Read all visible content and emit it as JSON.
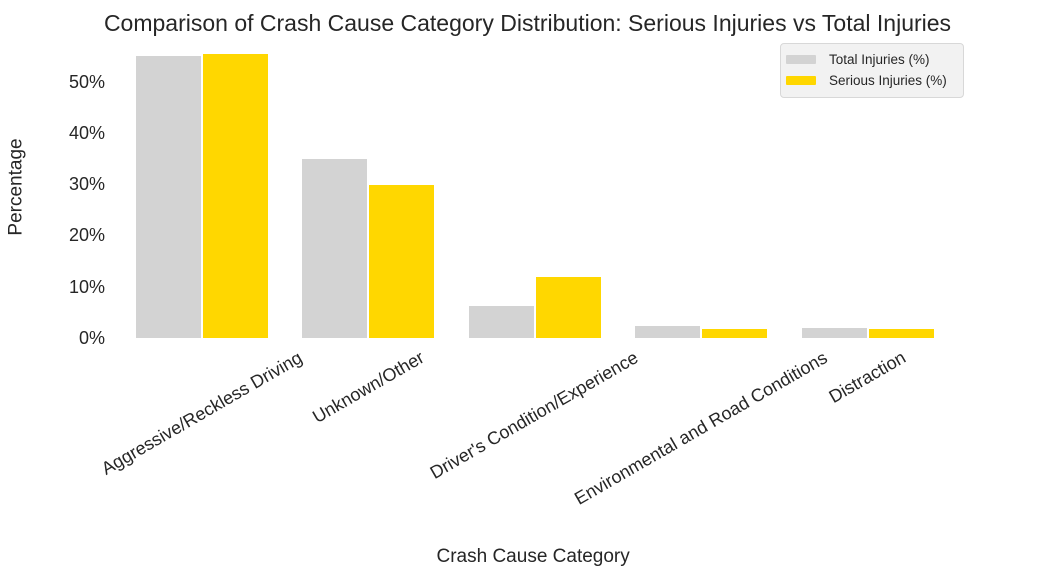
{
  "chart_data": {
    "type": "bar",
    "title": "Comparison of Crash Cause Category Distribution: Serious Injuries vs Total Injuries",
    "xlabel": "Crash Cause Category",
    "ylabel": "Percentage",
    "categories": [
      "Aggressive/Reckless Driving",
      "Unknown/Other",
      "Driver's Condition/Experience",
      "Environmental and Road Conditions",
      "Distraction"
    ],
    "series": [
      {
        "name": "Total Injuries (%)",
        "color": "#d3d3d3",
        "values": [
          54.9,
          34.8,
          6.2,
          2.4,
          1.9
        ]
      },
      {
        "name": "Serious Injuries (%)",
        "color": "#ffd700",
        "values": [
          55.4,
          29.8,
          11.9,
          1.7,
          1.7
        ]
      }
    ],
    "ytick_values": [
      0,
      10,
      20,
      30,
      40,
      50
    ],
    "ytick_labels": [
      "0%",
      "10%",
      "20%",
      "30%",
      "40%",
      "50%"
    ],
    "ylim": [
      0,
      57.1
    ],
    "grid": false,
    "legend_position": "upper right",
    "xtick_rotation_deg": 30
  },
  "legend": {
    "items": [
      {
        "label": "Total Injuries (%)",
        "color": "#d3d3d3"
      },
      {
        "label": "Serious Injuries (%)",
        "color": "#ffd700"
      }
    ]
  }
}
